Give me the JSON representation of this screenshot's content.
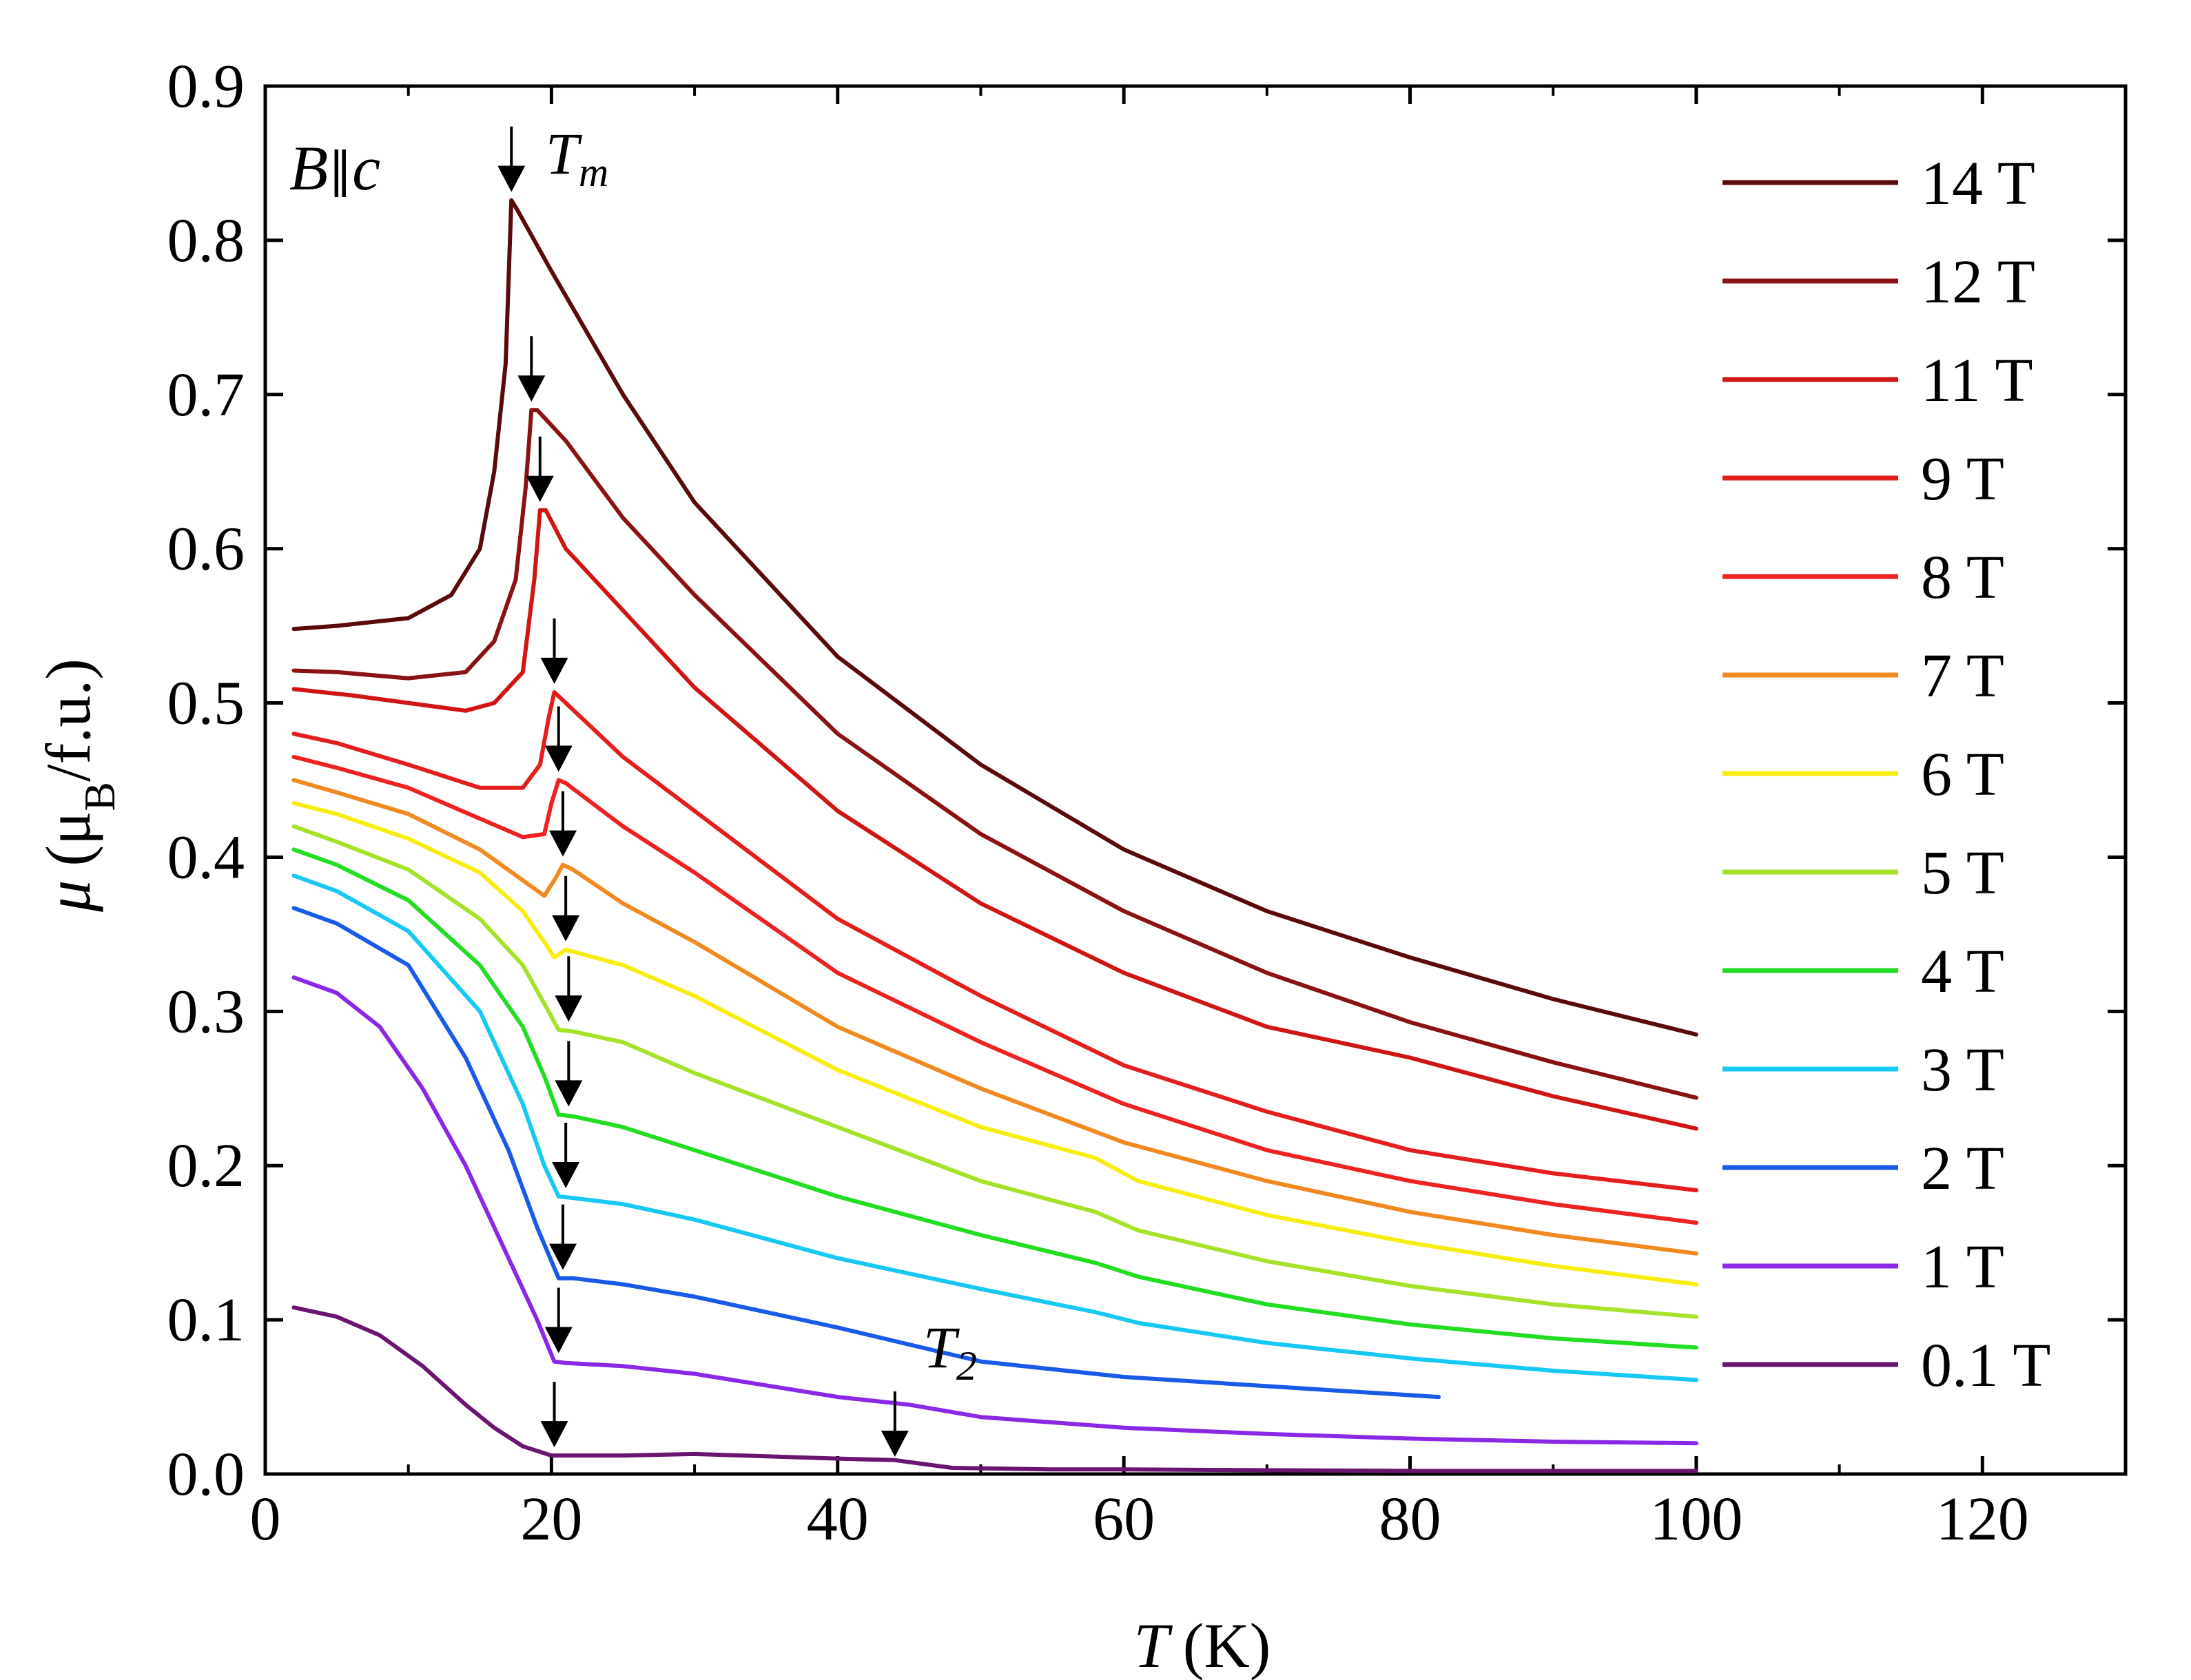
{
  "chart_data": {
    "type": "line",
    "title": "",
    "xlabel_italic": "T",
    "xlabel_unit": "(K)",
    "ylabel_italic": "μ",
    "ylabel_unit_open": "(μ",
    "ylabel_unit_sub": "B",
    "ylabel_unit_close": "/f.u.)",
    "xlim": [
      0,
      130
    ],
    "ylim": [
      0.0,
      0.9
    ],
    "xticks": [
      0,
      20,
      40,
      60,
      80,
      100,
      120
    ],
    "xtick_labels": [
      "0",
      "20",
      "40",
      "60",
      "80",
      "100",
      "120"
    ],
    "yticks": [
      0.0,
      0.1,
      0.2,
      0.3,
      0.4,
      0.5,
      0.6,
      0.7,
      0.8,
      0.9
    ],
    "ytick_labels": [
      "0.0",
      "0.1",
      "0.2",
      "0.3",
      "0.4",
      "0.5",
      "0.6",
      "0.7",
      "0.8",
      "0.9"
    ],
    "grid": false,
    "legend_position": "right",
    "field_label": {
      "b": "B",
      "par": "∥",
      "c": "c"
    },
    "annotations": {
      "tm": {
        "main": "T",
        "sub": "m",
        "x": 17.2,
        "y": 0.84
      },
      "t2": {
        "main": "T",
        "sub": "2",
        "x": 44,
        "y": 0.0
      }
    },
    "series": [
      {
        "name": "14 T",
        "color": "#5a0a0a",
        "x": [
          2,
          5,
          10,
          13,
          15,
          16,
          16.8,
          17.2,
          17.6,
          20,
          25,
          30,
          40,
          50,
          60,
          70,
          80,
          90,
          100
        ],
        "y": [
          0.548,
          0.55,
          0.555,
          0.57,
          0.6,
          0.65,
          0.72,
          0.826,
          0.82,
          0.78,
          0.7,
          0.63,
          0.53,
          0.46,
          0.405,
          0.365,
          0.335,
          0.308,
          0.285
        ]
      },
      {
        "name": "12 T",
        "color": "#8b1212",
        "x": [
          2,
          5,
          10,
          14,
          16,
          17.5,
          18.2,
          18.6,
          19,
          21,
          25,
          30,
          40,
          50,
          60,
          70,
          80,
          90,
          100
        ],
        "y": [
          0.521,
          0.52,
          0.516,
          0.52,
          0.54,
          0.58,
          0.64,
          0.69,
          0.69,
          0.67,
          0.62,
          0.57,
          0.48,
          0.415,
          0.365,
          0.325,
          0.293,
          0.267,
          0.244
        ]
      },
      {
        "name": "11 T",
        "color": "#d01515",
        "x": [
          2,
          6,
          10,
          14,
          16,
          18,
          18.8,
          19.2,
          19.6,
          21,
          25,
          30,
          40,
          50,
          60,
          70,
          80,
          90,
          100
        ],
        "y": [
          0.509,
          0.505,
          0.5,
          0.495,
          0.5,
          0.52,
          0.58,
          0.625,
          0.625,
          0.6,
          0.56,
          0.51,
          0.43,
          0.37,
          0.325,
          0.29,
          0.27,
          0.245,
          0.224
        ]
      },
      {
        "name": "9 T",
        "color": "#e41e1e",
        "x": [
          2,
          5,
          10,
          15,
          18,
          19.2,
          19.8,
          20.2,
          21,
          25,
          30,
          40,
          50,
          60,
          70,
          80,
          90,
          100
        ],
        "y": [
          0.48,
          0.474,
          0.46,
          0.445,
          0.445,
          0.46,
          0.49,
          0.507,
          0.5,
          0.465,
          0.43,
          0.36,
          0.31,
          0.265,
          0.235,
          0.21,
          0.195,
          0.184
        ]
      },
      {
        "name": "8 T",
        "color": "#ee2222",
        "x": [
          2,
          5,
          10,
          15,
          18,
          19.5,
          20,
          20.5,
          21,
          25,
          30,
          40,
          50,
          60,
          70,
          80,
          90,
          100
        ],
        "y": [
          0.465,
          0.458,
          0.445,
          0.425,
          0.413,
          0.415,
          0.435,
          0.45,
          0.448,
          0.42,
          0.39,
          0.325,
          0.28,
          0.24,
          0.21,
          0.19,
          0.175,
          0.163
        ]
      },
      {
        "name": "7 T",
        "color": "#f08a20",
        "x": [
          2,
          5,
          10,
          15,
          18,
          19.5,
          20.2,
          20.8,
          21.5,
          25,
          30,
          40,
          50,
          60,
          70,
          80,
          90,
          100
        ],
        "y": [
          0.45,
          0.442,
          0.428,
          0.405,
          0.385,
          0.375,
          0.385,
          0.395,
          0.392,
          0.37,
          0.345,
          0.29,
          0.25,
          0.215,
          0.19,
          0.17,
          0.155,
          0.143
        ]
      },
      {
        "name": "6 T",
        "color": "#f7ee10",
        "x": [
          2,
          5,
          10,
          15,
          18,
          19.5,
          20.2,
          21,
          25,
          30,
          40,
          50,
          58,
          61,
          70,
          80,
          90,
          100
        ],
        "y": [
          0.435,
          0.428,
          0.412,
          0.39,
          0.365,
          0.345,
          0.335,
          0.34,
          0.33,
          0.31,
          0.262,
          0.225,
          0.205,
          0.19,
          0.168,
          0.15,
          0.135,
          0.123
        ]
      },
      {
        "name": "5 T",
        "color": "#a6e22a",
        "x": [
          2,
          5,
          10,
          15,
          18,
          19.5,
          20.5,
          21.5,
          25,
          30,
          40,
          50,
          58,
          61,
          70,
          80,
          90,
          100
        ],
        "y": [
          0.42,
          0.41,
          0.392,
          0.36,
          0.33,
          0.305,
          0.288,
          0.287,
          0.28,
          0.26,
          0.225,
          0.19,
          0.17,
          0.158,
          0.138,
          0.122,
          0.11,
          0.102
        ]
      },
      {
        "name": "4 T",
        "color": "#22dd22",
        "x": [
          2,
          5,
          10,
          15,
          18,
          19.5,
          20.5,
          21.5,
          25,
          30,
          40,
          50,
          58,
          61,
          70,
          80,
          90,
          100
        ],
        "y": [
          0.405,
          0.395,
          0.372,
          0.33,
          0.29,
          0.258,
          0.233,
          0.232,
          0.225,
          0.21,
          0.18,
          0.155,
          0.137,
          0.128,
          0.11,
          0.097,
          0.088,
          0.082
        ]
      },
      {
        "name": "3 T",
        "color": "#16c8f2",
        "x": [
          2,
          5,
          10,
          15,
          18,
          19.5,
          20.5,
          21.5,
          25,
          30,
          40,
          50,
          58,
          61,
          70,
          80,
          90,
          100
        ],
        "y": [
          0.388,
          0.378,
          0.352,
          0.3,
          0.24,
          0.2,
          0.18,
          0.179,
          0.175,
          0.165,
          0.14,
          0.12,
          0.105,
          0.098,
          0.085,
          0.075,
          0.067,
          0.061
        ]
      },
      {
        "name": "2 T",
        "color": "#1a5ae8",
        "x": [
          2,
          5,
          10,
          14,
          17,
          19,
          20.5,
          21.5,
          25,
          30,
          40,
          50,
          60,
          70,
          82
        ],
        "y": [
          0.367,
          0.357,
          0.33,
          0.27,
          0.21,
          0.16,
          0.127,
          0.127,
          0.123,
          0.115,
          0.095,
          0.073,
          0.063,
          0.057,
          0.05
        ]
      },
      {
        "name": "1 T",
        "color": "#8a28e6",
        "x": [
          2,
          5,
          8,
          11,
          14,
          17,
          19,
          20.2,
          21,
          25,
          30,
          40,
          45,
          50,
          60,
          70,
          80,
          90,
          100
        ],
        "y": [
          0.322,
          0.312,
          0.29,
          0.25,
          0.2,
          0.14,
          0.1,
          0.073,
          0.072,
          0.07,
          0.065,
          0.05,
          0.045,
          0.037,
          0.03,
          0.026,
          0.023,
          0.021,
          0.02
        ]
      },
      {
        "name": "0.1 T",
        "color": "#6a1670",
        "x": [
          2,
          5,
          8,
          11,
          14,
          16,
          18,
          20,
          25,
          30,
          40,
          44,
          48,
          55,
          60,
          80,
          100
        ],
        "y": [
          0.108,
          0.102,
          0.09,
          0.07,
          0.045,
          0.03,
          0.018,
          0.012,
          0.012,
          0.013,
          0.01,
          0.009,
          0.004,
          0.003,
          0.003,
          0.002,
          0.002
        ]
      }
    ],
    "tm_arrows": [
      {
        "x": 17.2,
        "y": 0.826
      },
      {
        "x": 18.6,
        "y": 0.69
      },
      {
        "x": 19.2,
        "y": 0.625
      },
      {
        "x": 20.2,
        "y": 0.507
      },
      {
        "x": 20.5,
        "y": 0.45
      },
      {
        "x": 20.8,
        "y": 0.395
      },
      {
        "x": 21.0,
        "y": 0.34
      },
      {
        "x": 21.2,
        "y": 0.288
      },
      {
        "x": 21.2,
        "y": 0.233
      },
      {
        "x": 21.0,
        "y": 0.18
      },
      {
        "x": 20.8,
        "y": 0.127
      },
      {
        "x": 20.5,
        "y": 0.073
      },
      {
        "x": 20.2,
        "y": 0.012
      }
    ]
  }
}
